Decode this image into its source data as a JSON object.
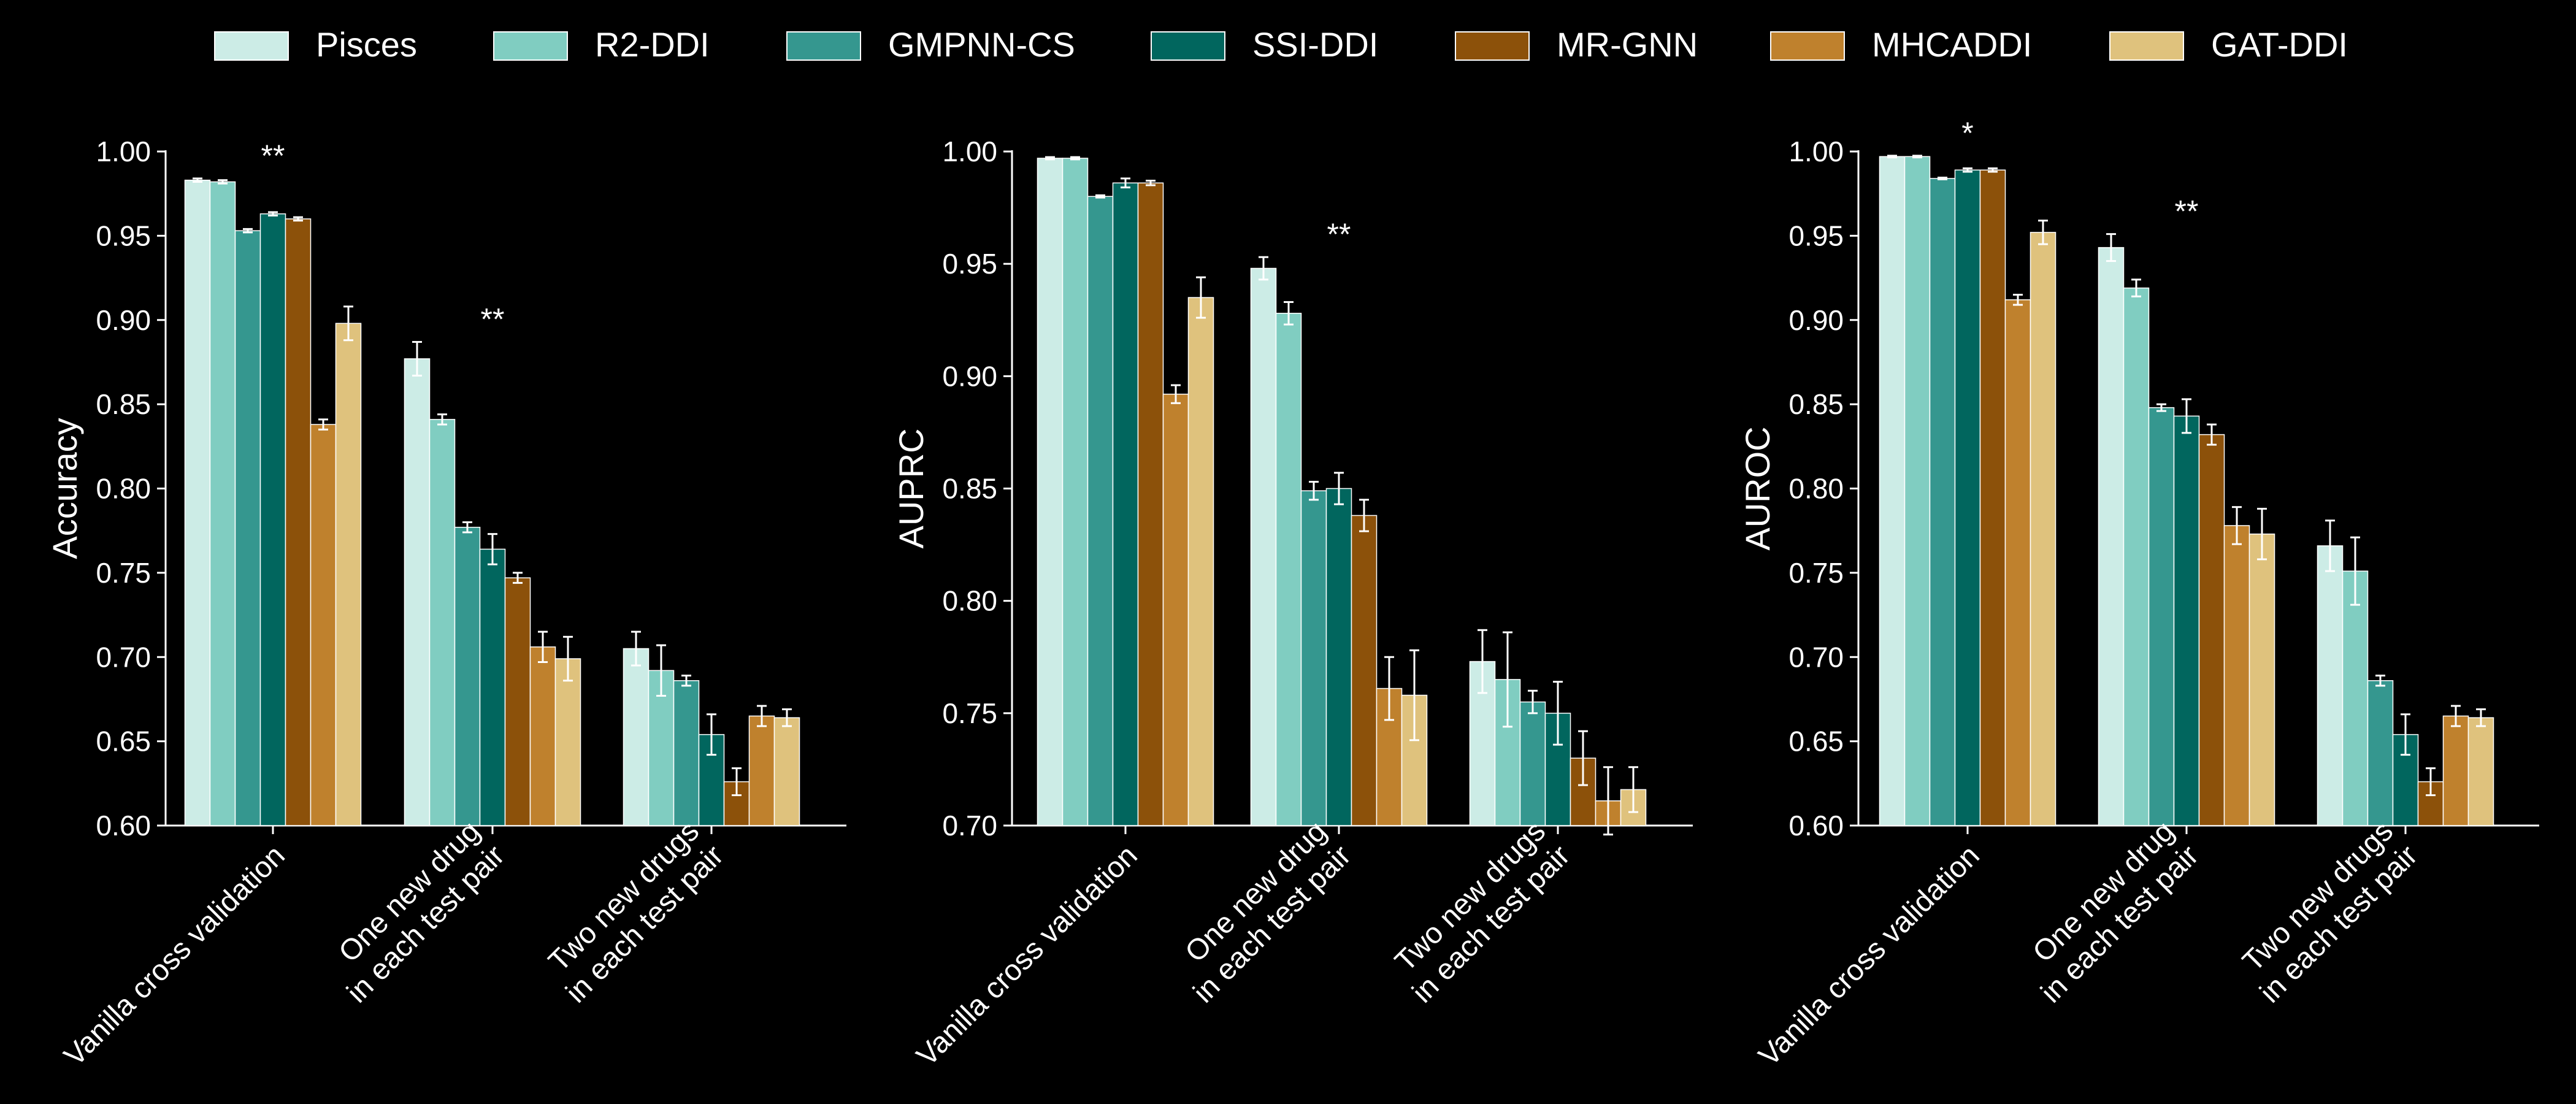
{
  "legend": [
    {
      "name": "Pisces",
      "color": "#ccece6"
    },
    {
      "name": "R2-DDI",
      "color": "#80cdc1"
    },
    {
      "name": "GMPNN-CS",
      "color": "#35978f"
    },
    {
      "name": "SSI-DDI",
      "color": "#01665e"
    },
    {
      "name": "MR-GNN",
      "color": "#8c510a"
    },
    {
      "name": "MHCADDI",
      "color": "#bf812d"
    },
    {
      "name": "GAT-DDI",
      "color": "#dfc27d"
    }
  ],
  "chart_data": [
    {
      "type": "bar",
      "ylabel": "Accuracy",
      "ylim": [
        0.6,
        1.0
      ],
      "yticks": [
        "0.60",
        "0.65",
        "0.70",
        "0.75",
        "0.80",
        "0.85",
        "0.90",
        "0.95",
        "1.00"
      ],
      "categories": [
        [
          "Vanilla cross validation"
        ],
        [
          "One new drug",
          "in each test pair"
        ],
        [
          "Two new drugs",
          "in each test pair"
        ]
      ],
      "significance": [
        "**",
        "**",
        ""
      ],
      "series": [
        {
          "name": "Pisces",
          "values": [
            0.983,
            0.877,
            0.705
          ],
          "errors": [
            0.001,
            0.01,
            0.01
          ]
        },
        {
          "name": "R2-DDI",
          "values": [
            0.982,
            0.841,
            0.692
          ],
          "errors": [
            0.001,
            0.003,
            0.015
          ]
        },
        {
          "name": "GMPNN-CS",
          "values": [
            0.953,
            0.777,
            0.686
          ],
          "errors": [
            0.001,
            0.003,
            0.003
          ]
        },
        {
          "name": "SSI-DDI",
          "values": [
            0.963,
            0.764,
            0.654
          ],
          "errors": [
            0.001,
            0.009,
            0.012
          ]
        },
        {
          "name": "MR-GNN",
          "values": [
            0.96,
            0.747,
            0.626
          ],
          "errors": [
            0.001,
            0.003,
            0.008
          ]
        },
        {
          "name": "MHCADDI",
          "values": [
            0.838,
            0.706,
            0.665
          ],
          "errors": [
            0.003,
            0.009,
            0.006
          ]
        },
        {
          "name": "GAT-DDI",
          "values": [
            0.898,
            0.699,
            0.664
          ],
          "errors": [
            0.01,
            0.013,
            0.005
          ]
        }
      ]
    },
    {
      "type": "bar",
      "ylabel": "AUPRC",
      "ylim": [
        0.7,
        1.0
      ],
      "yticks": [
        "0.70",
        "0.75",
        "0.80",
        "0.85",
        "0.90",
        "0.95",
        "1.00"
      ],
      "categories": [
        [
          "Vanilla cross validation"
        ],
        [
          "One new drug",
          "in each test pair"
        ],
        [
          "Two new drugs",
          "in each test pair"
        ]
      ],
      "significance": [
        "",
        "**",
        ""
      ],
      "series": [
        {
          "name": "Pisces",
          "values": [
            0.997,
            0.948,
            0.773
          ],
          "errors": [
            0.0005,
            0.005,
            0.014
          ]
        },
        {
          "name": "R2-DDI",
          "values": [
            0.997,
            0.928,
            0.765
          ],
          "errors": [
            0.0005,
            0.005,
            0.021
          ]
        },
        {
          "name": "GMPNN-CS",
          "values": [
            0.98,
            0.849,
            0.755
          ],
          "errors": [
            0.0005,
            0.004,
            0.005
          ]
        },
        {
          "name": "SSI-DDI",
          "values": [
            0.986,
            0.85,
            0.75
          ],
          "errors": [
            0.002,
            0.007,
            0.014
          ]
        },
        {
          "name": "MR-GNN",
          "values": [
            0.986,
            0.838,
            0.73
          ],
          "errors": [
            0.001,
            0.007,
            0.012
          ]
        },
        {
          "name": "MHCADDI",
          "values": [
            0.892,
            0.761,
            0.711
          ],
          "errors": [
            0.004,
            0.014,
            0.015
          ]
        },
        {
          "name": "GAT-DDI",
          "values": [
            0.935,
            0.758,
            0.716
          ],
          "errors": [
            0.009,
            0.02,
            0.01
          ]
        }
      ]
    },
    {
      "type": "bar",
      "ylabel": "AUROC",
      "ylim": [
        0.6,
        1.0
      ],
      "yticks": [
        "0.60",
        "0.65",
        "0.70",
        "0.75",
        "0.80",
        "0.85",
        "0.90",
        "0.95",
        "1.00"
      ],
      "categories": [
        [
          "Vanilla cross validation"
        ],
        [
          "One new drug",
          "in each test pair"
        ],
        [
          "Two new drugs",
          "in each test pair"
        ]
      ],
      "significance": [
        "*",
        "**",
        ""
      ],
      "series": [
        {
          "name": "Pisces",
          "values": [
            0.997,
            0.943,
            0.766
          ],
          "errors": [
            0.0005,
            0.008,
            0.015
          ]
        },
        {
          "name": "R2-DDI",
          "values": [
            0.997,
            0.919,
            0.751
          ],
          "errors": [
            0.0005,
            0.005,
            0.02
          ]
        },
        {
          "name": "GMPNN-CS",
          "values": [
            0.984,
            0.848,
            0.686
          ],
          "errors": [
            0.0005,
            0.002,
            0.003
          ]
        },
        {
          "name": "SSI-DDI",
          "values": [
            0.989,
            0.843,
            0.654
          ],
          "errors": [
            0.001,
            0.01,
            0.012
          ]
        },
        {
          "name": "MR-GNN",
          "values": [
            0.989,
            0.832,
            0.626
          ],
          "errors": [
            0.001,
            0.006,
            0.008
          ]
        },
        {
          "name": "MHCADDI",
          "values": [
            0.912,
            0.778,
            0.665
          ],
          "errors": [
            0.003,
            0.011,
            0.006
          ]
        },
        {
          "name": "GAT-DDI",
          "values": [
            0.952,
            0.773,
            0.664
          ],
          "errors": [
            0.007,
            0.015,
            0.005
          ]
        }
      ]
    }
  ]
}
